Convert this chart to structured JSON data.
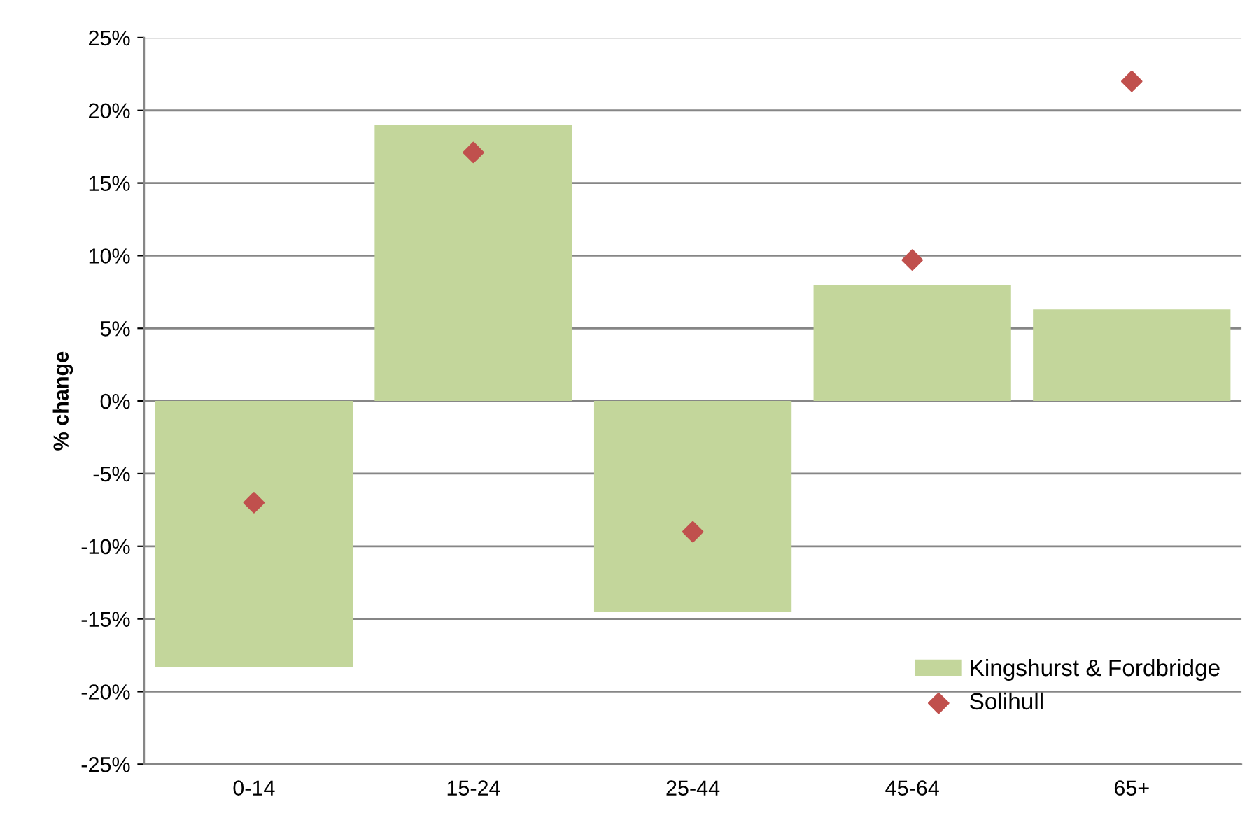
{
  "chart_data": {
    "type": "bar",
    "ylabel": "% change",
    "categories": [
      "0-14",
      "15-24",
      "25-44",
      "45-64",
      "65+"
    ],
    "series": [
      {
        "name": "Kingshurst & Fordbridge",
        "color": "#c3d69b",
        "values": [
          -18.3,
          19.0,
          -14.5,
          8.0,
          6.3
        ]
      },
      {
        "name": "Solihull",
        "type": "scatter",
        "color": "#c0504d",
        "marker": "diamond",
        "x": [
          "0-14",
          "15-24",
          "25-44",
          "45-64",
          "65+"
        ],
        "values": [
          -7.0,
          17.1,
          -9.0,
          9.7,
          22.0
        ]
      }
    ],
    "ylim": [
      -25,
      25
    ],
    "yticks": [
      {
        "value": -25,
        "label": "-25%"
      },
      {
        "value": -20,
        "label": "-20%"
      },
      {
        "value": -15,
        "label": "-15%"
      },
      {
        "value": -10,
        "label": "-10%"
      },
      {
        "value": -5,
        "label": "-5%"
      },
      {
        "value": 0,
        "label": "0%"
      },
      {
        "value": 5,
        "label": "5%"
      },
      {
        "value": 10,
        "label": "10%"
      },
      {
        "value": 15,
        "label": "15%"
      },
      {
        "value": 20,
        "label": "20%"
      },
      {
        "value": 25,
        "label": "25%"
      }
    ],
    "grid": "y",
    "legend": "bottom right"
  }
}
